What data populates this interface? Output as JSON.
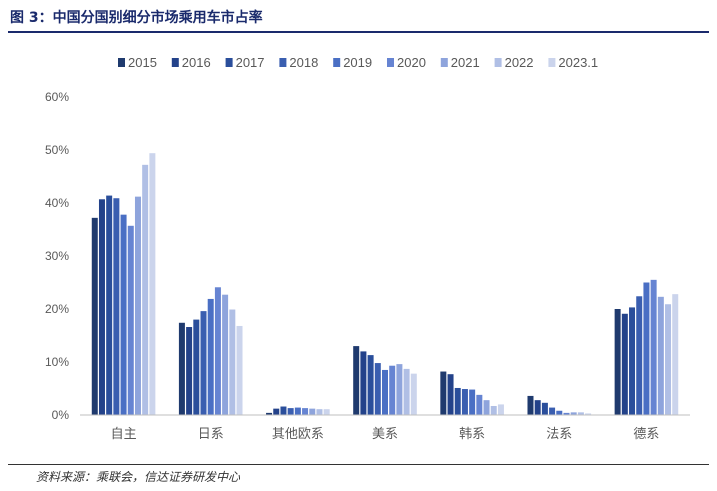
{
  "header": {
    "title": "图 3：中国分国别细分市场乘用车市占率"
  },
  "footer": {
    "source": "资料来源：乘联会，信达证券研发中心"
  },
  "chart_data": {
    "type": "bar",
    "title": "",
    "xlabel": "",
    "ylabel": "",
    "ylim": [
      0,
      60
    ],
    "y_ticks": [
      "0%",
      "10%",
      "20%",
      "30%",
      "40%",
      "50%",
      "60%"
    ],
    "legend_position": "top",
    "grid": false,
    "categories": [
      "自主",
      "日系",
      "其他欧系",
      "美系",
      "韩系",
      "法系",
      "德系"
    ],
    "series": [
      {
        "name": "2015",
        "color": "#1f3a6e",
        "values": [
          37.2,
          17.4,
          0.4,
          13.0,
          8.2,
          3.6,
          20.0
        ]
      },
      {
        "name": "2016",
        "color": "#23428a",
        "values": [
          40.7,
          16.6,
          1.2,
          12.0,
          7.7,
          2.8,
          19.1
        ]
      },
      {
        "name": "2017",
        "color": "#2a4e9b",
        "values": [
          41.4,
          18.0,
          1.6,
          11.3,
          5.1,
          2.3,
          20.3
        ]
      },
      {
        "name": "2018",
        "color": "#3a5eb0",
        "values": [
          40.9,
          19.6,
          1.3,
          9.8,
          4.9,
          1.4,
          22.4
        ]
      },
      {
        "name": "2019",
        "color": "#4a6fc4",
        "values": [
          37.8,
          21.9,
          1.4,
          8.5,
          4.8,
          0.8,
          25.0
        ]
      },
      {
        "name": "2020",
        "color": "#6684d2",
        "values": [
          35.7,
          24.1,
          1.3,
          9.3,
          3.8,
          0.4,
          25.5
        ]
      },
      {
        "name": "2021",
        "color": "#8ea4dc",
        "values": [
          41.2,
          22.7,
          1.2,
          9.6,
          2.8,
          0.5,
          22.3
        ]
      },
      {
        "name": "2022",
        "color": "#b0bfe5",
        "values": [
          47.2,
          19.9,
          1.1,
          8.7,
          1.7,
          0.5,
          20.9
        ]
      },
      {
        "name": "2023.1",
        "color": "#cbd4ec",
        "values": [
          49.4,
          16.8,
          1.1,
          7.8,
          2.0,
          0.3,
          22.8
        ]
      }
    ]
  }
}
